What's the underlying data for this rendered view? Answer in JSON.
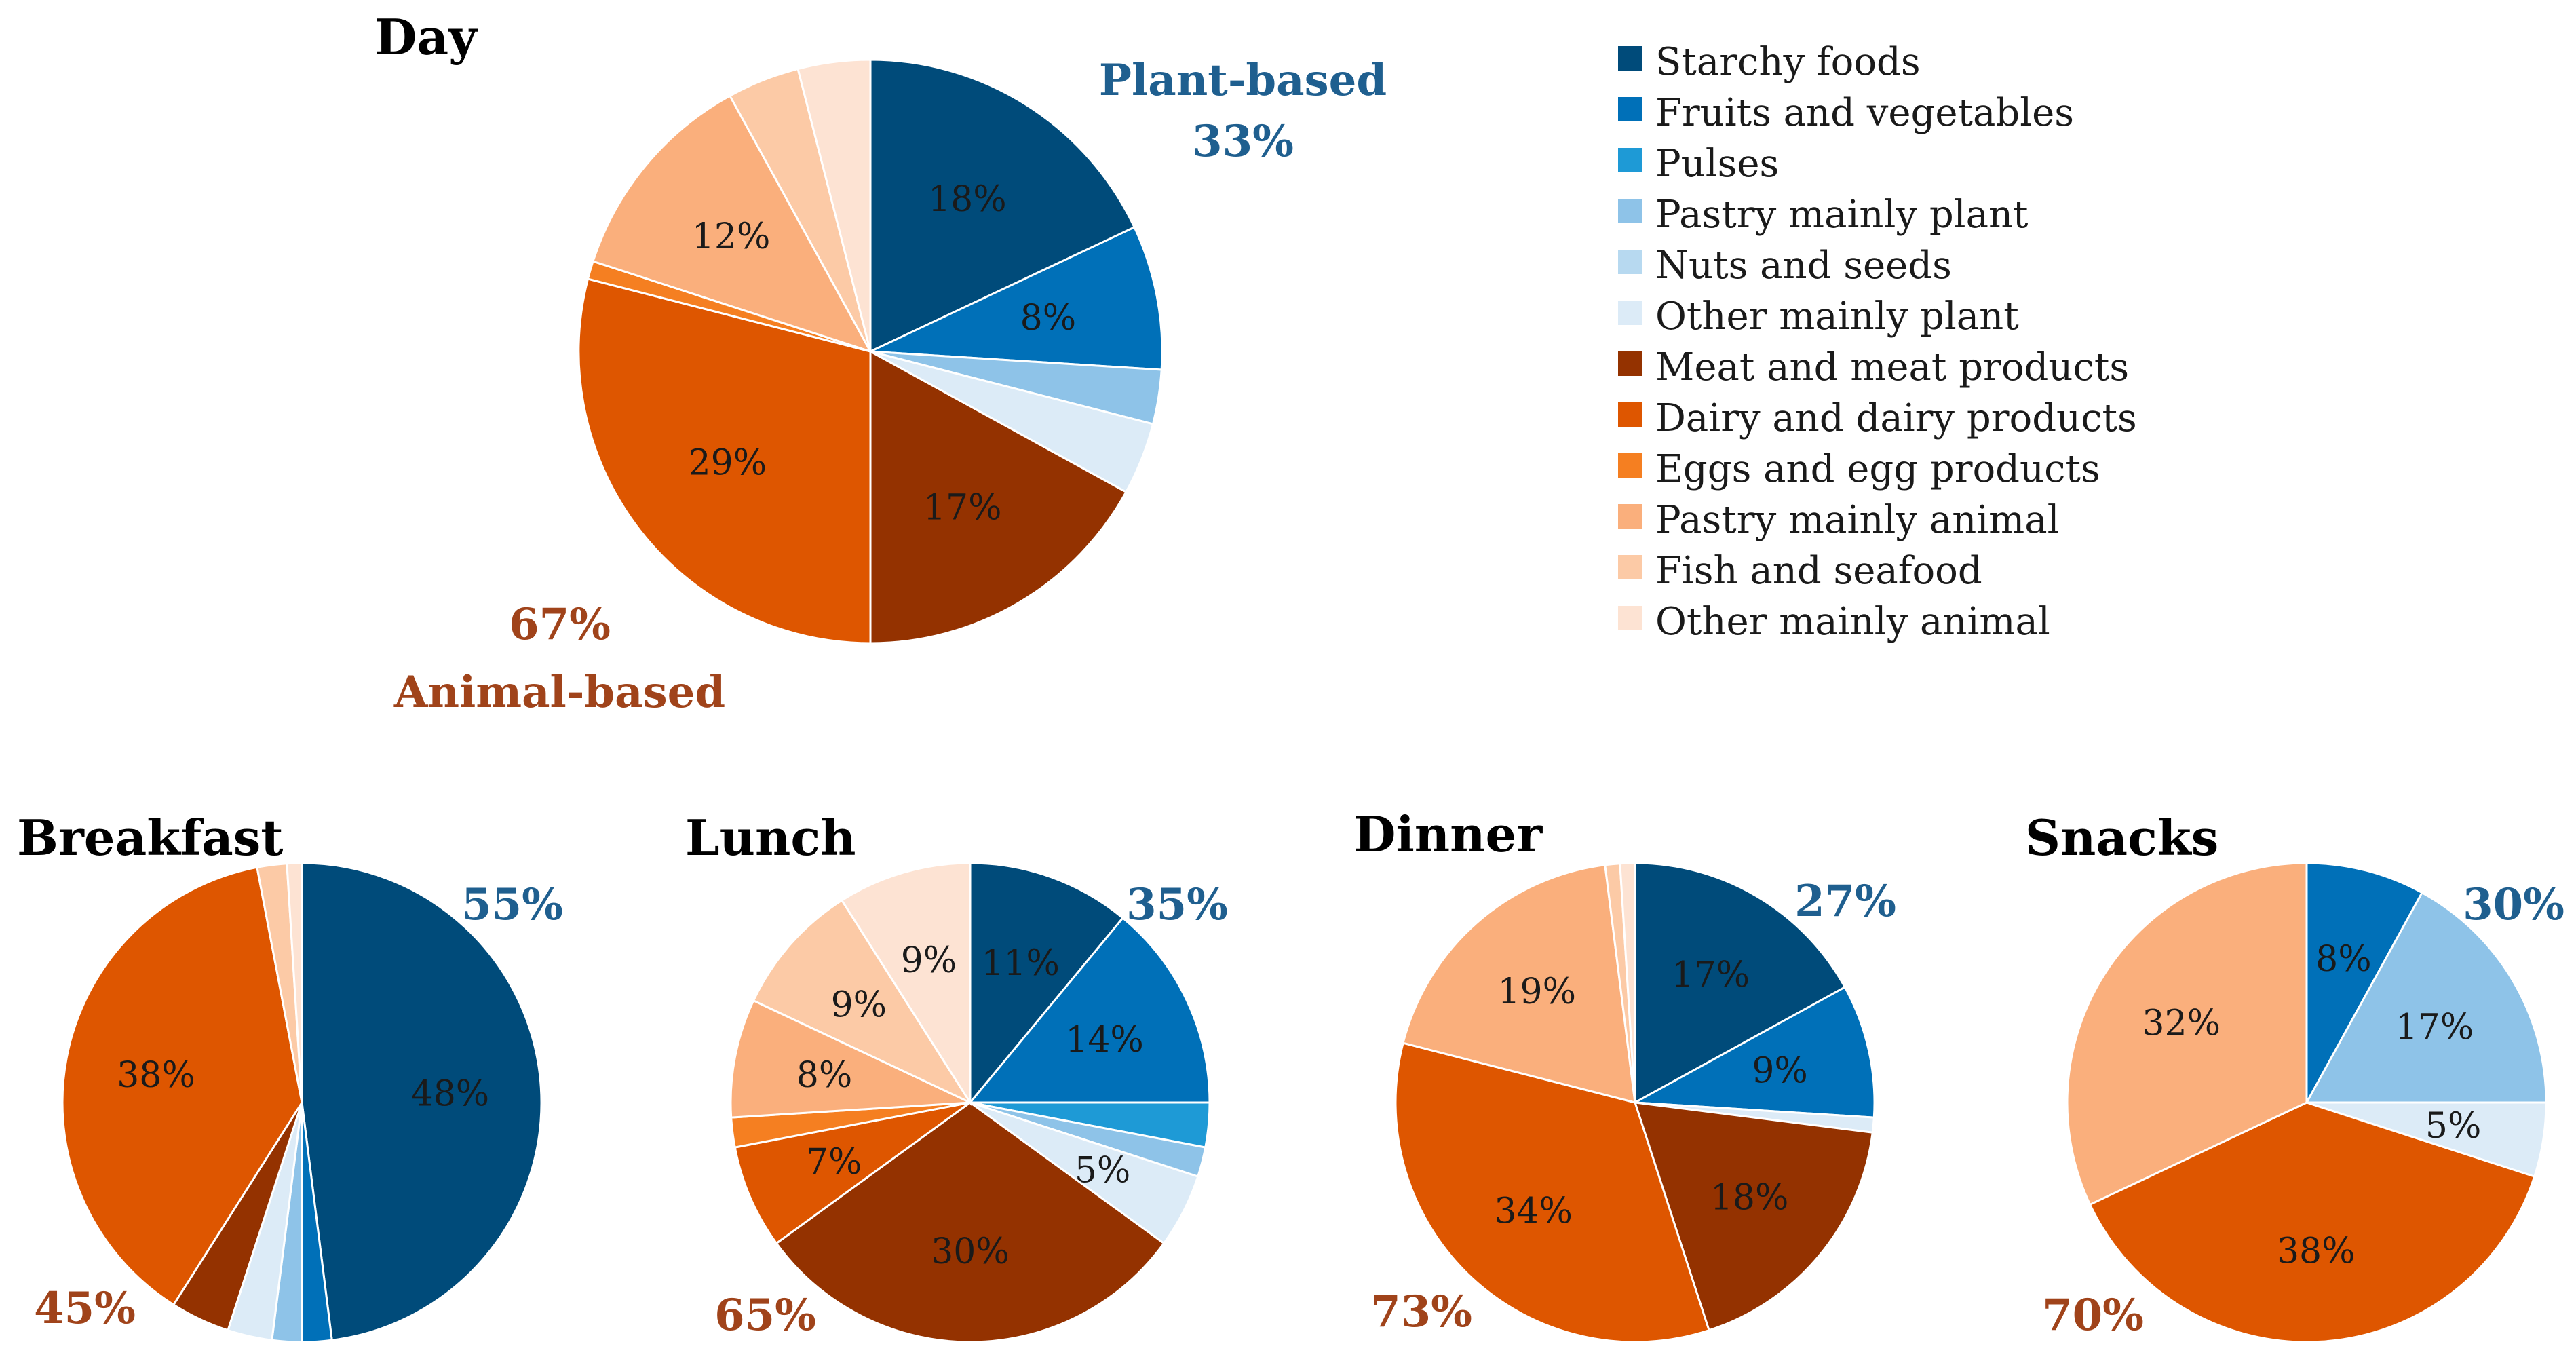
{
  "legend": {
    "items": [
      {
        "label": "Starchy foods",
        "color": "#004B7A"
      },
      {
        "label": "Fruits and vegetables",
        "color": "#0070B8"
      },
      {
        "label": "Pulses",
        "color": "#1E9AD6"
      },
      {
        "label": "Pastry mainly plant",
        "color": "#8EC3E8"
      },
      {
        "label": "Nuts and seeds",
        "color": "#B7D9F0"
      },
      {
        "label": "Other mainly plant",
        "color": "#DCEBF7"
      },
      {
        "label": "Meat and meat products",
        "color": "#943200"
      },
      {
        "label": "Dairy and dairy products",
        "color": "#DE5600"
      },
      {
        "label": "Eggs and egg products",
        "color": "#F57F21"
      },
      {
        "label": "Pastry mainly animal",
        "color": "#FAAF7C"
      },
      {
        "label": "Fish and seafood",
        "color": "#FCCAA6"
      },
      {
        "label": "Other mainly animal",
        "color": "#FDE3D3"
      }
    ]
  },
  "chart_data": [
    {
      "type": "pie",
      "title": "Day",
      "plant_total": "33%",
      "plant_label": "Plant-based",
      "animal_total": "67%",
      "animal_label": "Animal-based",
      "slices": [
        {
          "category": "Starchy foods",
          "value": 18,
          "label": "18%"
        },
        {
          "category": "Fruits and vegetables",
          "value": 8,
          "label": "8%"
        },
        {
          "category": "Pulses",
          "value": 0,
          "label": ""
        },
        {
          "category": "Pastry mainly plant",
          "value": 3,
          "label": ""
        },
        {
          "category": "Nuts and seeds",
          "value": 0,
          "label": ""
        },
        {
          "category": "Other mainly plant",
          "value": 4,
          "label": ""
        },
        {
          "category": "Meat and meat products",
          "value": 17,
          "label": "17%"
        },
        {
          "category": "Dairy and dairy products",
          "value": 29,
          "label": "29%"
        },
        {
          "category": "Eggs and egg products",
          "value": 1,
          "label": ""
        },
        {
          "category": "Pastry mainly animal",
          "value": 12,
          "label": "12%"
        },
        {
          "category": "Fish and seafood",
          "value": 4,
          "label": ""
        },
        {
          "category": "Other mainly animal",
          "value": 4,
          "label": ""
        }
      ]
    },
    {
      "type": "pie",
      "title": "Breakfast",
      "plant_total": "55%",
      "animal_total": "45%",
      "slices": [
        {
          "category": "Starchy foods",
          "value": 48,
          "label": "48%"
        },
        {
          "category": "Fruits and vegetables",
          "value": 2,
          "label": ""
        },
        {
          "category": "Pulses",
          "value": 0,
          "label": ""
        },
        {
          "category": "Pastry mainly plant",
          "value": 2,
          "label": ""
        },
        {
          "category": "Nuts and seeds",
          "value": 0,
          "label": ""
        },
        {
          "category": "Other mainly plant",
          "value": 3,
          "label": ""
        },
        {
          "category": "Meat and meat products",
          "value": 4,
          "label": ""
        },
        {
          "category": "Dairy and dairy products",
          "value": 38,
          "label": "38%"
        },
        {
          "category": "Eggs and egg products",
          "value": 0,
          "label": ""
        },
        {
          "category": "Pastry mainly animal",
          "value": 0,
          "label": ""
        },
        {
          "category": "Fish and seafood",
          "value": 2,
          "label": ""
        },
        {
          "category": "Other mainly animal",
          "value": 1,
          "label": ""
        }
      ]
    },
    {
      "type": "pie",
      "title": "Lunch",
      "plant_total": "35%",
      "animal_total": "65%",
      "slices": [
        {
          "category": "Starchy foods",
          "value": 11,
          "label": "11%"
        },
        {
          "category": "Fruits and vegetables",
          "value": 14,
          "label": "14%"
        },
        {
          "category": "Pulses",
          "value": 3,
          "label": ""
        },
        {
          "category": "Pastry mainly plant",
          "value": 2,
          "label": ""
        },
        {
          "category": "Nuts and seeds",
          "value": 0,
          "label": ""
        },
        {
          "category": "Other mainly plant",
          "value": 5,
          "label": "5%"
        },
        {
          "category": "Meat and meat products",
          "value": 30,
          "label": "30%"
        },
        {
          "category": "Dairy and dairy products",
          "value": 7,
          "label": "7%"
        },
        {
          "category": "Eggs and egg products",
          "value": 2,
          "label": ""
        },
        {
          "category": "Pastry mainly animal",
          "value": 8,
          "label": "8%"
        },
        {
          "category": "Fish and seafood",
          "value": 9,
          "label": "9%"
        },
        {
          "category": "Other mainly animal",
          "value": 9,
          "label": "9%"
        }
      ]
    },
    {
      "type": "pie",
      "title": "Dinner",
      "plant_total": "27%",
      "animal_total": "73%",
      "slices": [
        {
          "category": "Starchy foods",
          "value": 17,
          "label": "17%"
        },
        {
          "category": "Fruits and vegetables",
          "value": 9,
          "label": "9%"
        },
        {
          "category": "Pulses",
          "value": 0,
          "label": ""
        },
        {
          "category": "Pastry mainly plant",
          "value": 0,
          "label": ""
        },
        {
          "category": "Nuts and seeds",
          "value": 0,
          "label": ""
        },
        {
          "category": "Other mainly plant",
          "value": 1,
          "label": ""
        },
        {
          "category": "Meat and meat products",
          "value": 18,
          "label": "18%"
        },
        {
          "category": "Dairy and dairy products",
          "value": 34,
          "label": "34%"
        },
        {
          "category": "Eggs and egg products",
          "value": 0,
          "label": ""
        },
        {
          "category": "Pastry mainly animal",
          "value": 19,
          "label": "19%"
        },
        {
          "category": "Fish and seafood",
          "value": 1,
          "label": ""
        },
        {
          "category": "Other mainly animal",
          "value": 1,
          "label": ""
        }
      ]
    },
    {
      "type": "pie",
      "title": "Snacks",
      "plant_total": "30%",
      "animal_total": "70%",
      "slices": [
        {
          "category": "Starchy foods",
          "value": 0,
          "label": ""
        },
        {
          "category": "Fruits and vegetables",
          "value": 8,
          "label": "8%"
        },
        {
          "category": "Pulses",
          "value": 0,
          "label": ""
        },
        {
          "category": "Pastry mainly plant",
          "value": 17,
          "label": "17%"
        },
        {
          "category": "Nuts and seeds",
          "value": 0,
          "label": ""
        },
        {
          "category": "Other mainly plant",
          "value": 5,
          "label": "5%"
        },
        {
          "category": "Meat and meat products",
          "value": 0,
          "label": ""
        },
        {
          "category": "Dairy and dairy products",
          "value": 38,
          "label": "38%"
        },
        {
          "category": "Eggs and egg products",
          "value": 0,
          "label": ""
        },
        {
          "category": "Pastry mainly animal",
          "value": 32,
          "label": "32%"
        },
        {
          "category": "Fish and seafood",
          "value": 0,
          "label": ""
        },
        {
          "category": "Other mainly animal",
          "value": 0,
          "label": ""
        }
      ]
    }
  ]
}
